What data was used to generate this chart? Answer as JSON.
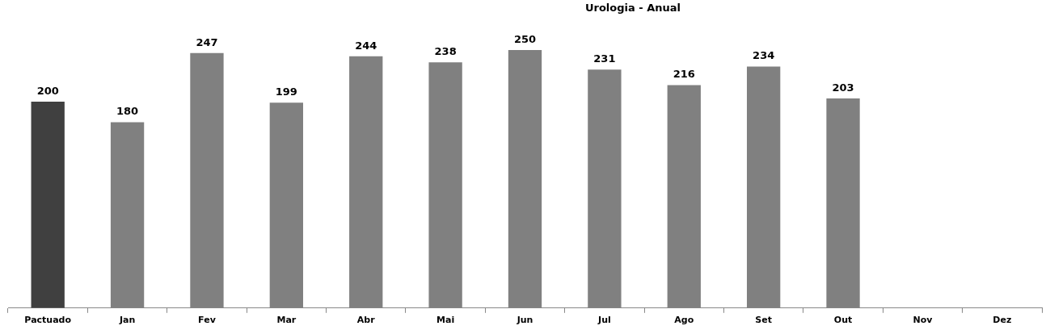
{
  "chart_data": {
    "type": "bar",
    "title": "Urologia - Anual",
    "categories": [
      "Pactuado",
      "Jan",
      "Fev",
      "Mar",
      "Abr",
      "Mai",
      "Jun",
      "Jul",
      "Ago",
      "Set",
      "Out",
      "Nov",
      "Dez"
    ],
    "values": [
      200,
      180,
      247,
      199,
      244,
      238,
      250,
      231,
      216,
      234,
      203,
      null,
      null
    ],
    "colors": [
      "#404040",
      "#808080",
      "#808080",
      "#808080",
      "#808080",
      "#808080",
      "#808080",
      "#808080",
      "#808080",
      "#808080",
      "#808080",
      "#808080",
      "#808080"
    ],
    "data_labels": true,
    "grid": false,
    "legend": false
  }
}
